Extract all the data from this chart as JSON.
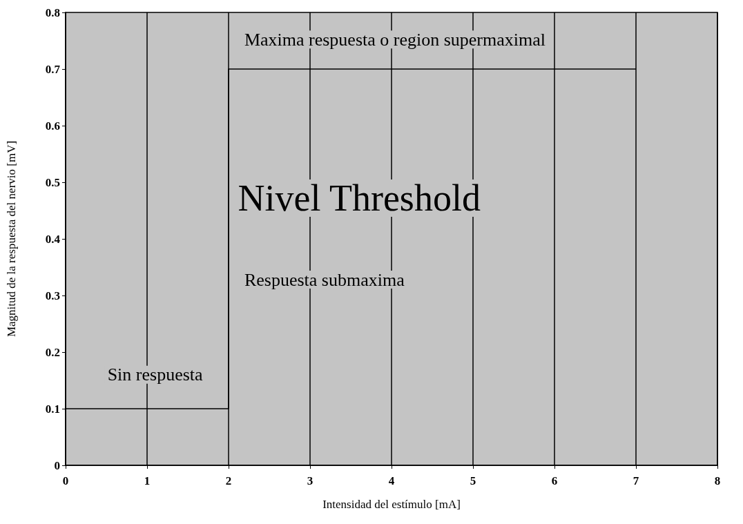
{
  "chart_data": {
    "type": "step",
    "xlabel": "Intensidad del estímulo [mA]",
    "ylabel": "Magnitud de la respuesta del nervio [mV]",
    "x": [
      0,
      2,
      7
    ],
    "values": [
      0.1,
      0.7,
      0.7
    ],
    "color": "#000000",
    "xlim": [
      0,
      8
    ],
    "xticks": [
      0,
      1,
      2,
      3,
      4,
      5,
      6,
      7,
      8
    ],
    "ylim": [
      0,
      0.8
    ],
    "yticks": [
      0,
      0.1,
      0.2,
      0.3,
      0.4,
      0.5,
      0.6,
      0.7,
      0.8
    ],
    "grid": "x",
    "marker": "none",
    "line_style": "solid",
    "annotations": [
      "Maxima respuesta o region supermaximal",
      "Nivel Threshold",
      "Respuesta submaxima",
      "Sin respuesta"
    ]
  }
}
